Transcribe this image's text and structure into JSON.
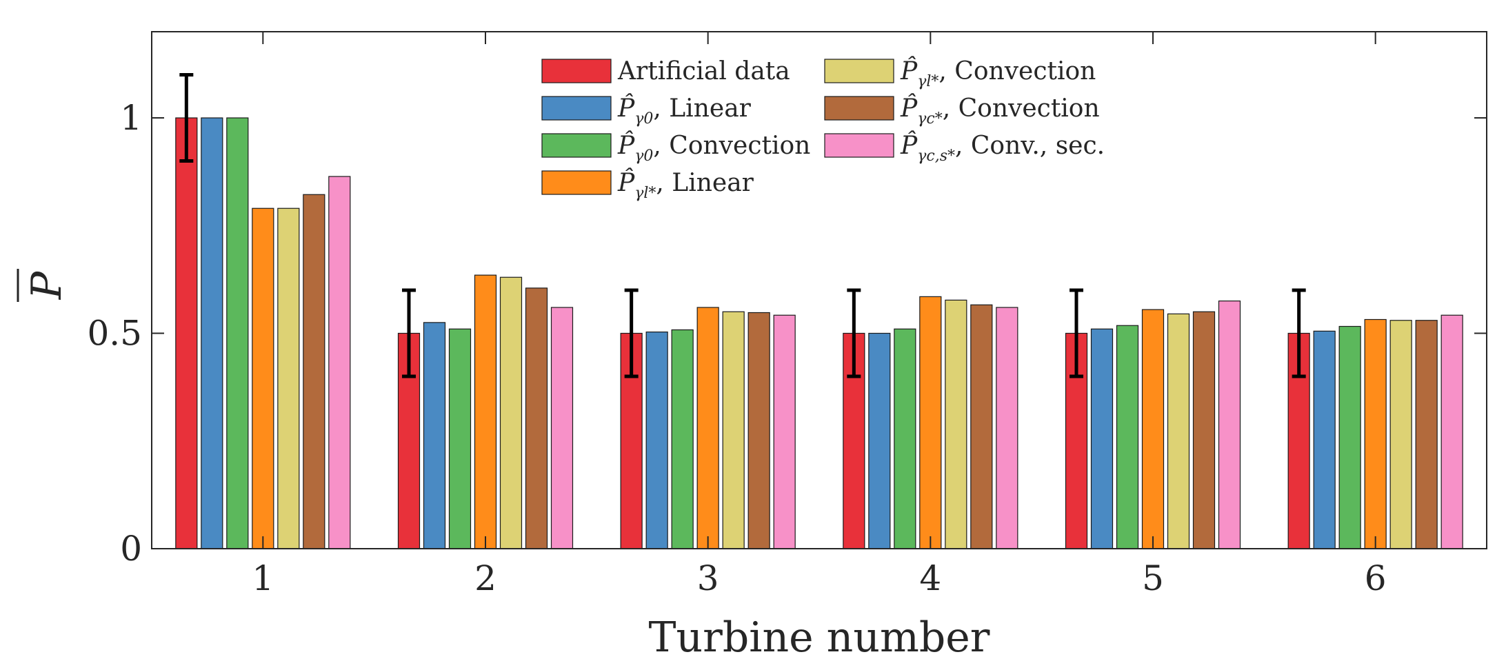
{
  "chart_data": {
    "type": "bar",
    "xlabel": "Turbine number",
    "ylabel": "P",
    "ylim": [
      0,
      1.2
    ],
    "yticks": [
      "0",
      "0.5",
      "1"
    ],
    "categories": [
      "1",
      "2",
      "3",
      "4",
      "5",
      "6"
    ],
    "grid": false,
    "legend_position": "top-center",
    "series": [
      {
        "name": "Artificial data",
        "legend_main": "Artificial data",
        "legend_sub": "",
        "legend_suffix": "",
        "color": "#e8313a",
        "values": [
          1.0,
          0.5,
          0.5,
          0.5,
          0.5,
          0.5
        ],
        "error": [
          [
            0.9,
            1.1
          ],
          [
            0.4,
            0.6
          ],
          [
            0.4,
            0.6
          ],
          [
            0.4,
            0.6
          ],
          [
            0.4,
            0.6
          ],
          [
            0.4,
            0.6
          ]
        ]
      },
      {
        "name": "P̂γ0, Linear",
        "legend_main": "P̂",
        "legend_sub": "γ0",
        "legend_suffix": ", Linear",
        "color": "#4a8ac3",
        "values": [
          1.0,
          0.525,
          0.503,
          0.5,
          0.51,
          0.505
        ]
      },
      {
        "name": "P̂γ0, Convection",
        "legend_main": "P̂",
        "legend_sub": "γ0",
        "legend_suffix": ", Convection",
        "color": "#5cb85c",
        "values": [
          1.0,
          0.51,
          0.508,
          0.51,
          0.518,
          0.516
        ]
      },
      {
        "name": "P̂γl*, Linear",
        "legend_main": "P̂",
        "legend_sub": "γl*",
        "legend_suffix": ", Linear",
        "color": "#ff8c1a",
        "values": [
          0.79,
          0.635,
          0.56,
          0.585,
          0.555,
          0.532
        ]
      },
      {
        "name": "P̂γl*, Convection",
        "legend_main": "P̂",
        "legend_sub": "γl*",
        "legend_suffix": ", Convection",
        "color": "#ddd274",
        "values": [
          0.79,
          0.63,
          0.55,
          0.577,
          0.545,
          0.53
        ]
      },
      {
        "name": "P̂γc*, Convection",
        "legend_main": "P̂",
        "legend_sub": "γc*",
        "legend_suffix": ", Convection",
        "color": "#b26a3c",
        "values": [
          0.822,
          0.605,
          0.548,
          0.566,
          0.55,
          0.53
        ]
      },
      {
        "name": "P̂γc,s*, Conv., sec.",
        "legend_main": "P̂",
        "legend_sub": "γc,s*",
        "legend_suffix": ", Conv., sec.",
        "color": "#f791c8",
        "values": [
          0.864,
          0.56,
          0.542,
          0.56,
          0.575,
          0.542
        ]
      }
    ]
  }
}
